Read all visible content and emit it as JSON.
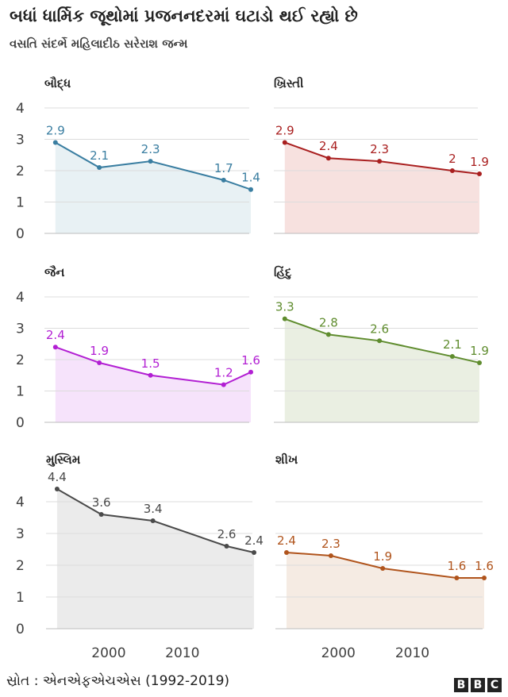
{
  "title": "બધાં ધાર્મિક જૂથોમાં પ્રજનનદરમાં ઘટાડો થઈ રહ્યો છે",
  "subtitle": "વસતિ સંદર્ભે મહિલાદીઠ સરેરાશ જન્મ",
  "source": "સ્રોત : એનએફએચએસ (1992-2019)",
  "logo_letters": [
    "B",
    "B",
    "C"
  ],
  "chart_data": [
    {
      "type": "area",
      "title": "બૌદ્ધ",
      "color": "#3a7ea1",
      "fill": "#e8f1f4",
      "x": [
        1993,
        1999,
        2006,
        2016,
        2020
      ],
      "values": [
        2.9,
        2.1,
        2.3,
        1.7,
        1.4
      ],
      "labels": [
        "2.9",
        "2.1",
        "2.3",
        "1.7",
        "1.4"
      ],
      "ylim": [
        0,
        4
      ],
      "yticks": [
        "0",
        "1",
        "2",
        "3",
        "4"
      ],
      "xticks": []
    },
    {
      "type": "area",
      "title": "ખ્રિસ્તી",
      "color": "#a91f1f",
      "fill": "#f7e1df",
      "x": [
        1993,
        1999,
        2006,
        2016,
        2020
      ],
      "values": [
        2.9,
        2.4,
        2.3,
        2.0,
        1.9
      ],
      "labels": [
        "2.9",
        "2.4",
        "2.3",
        "2",
        "1.9"
      ],
      "ylim": [
        0,
        4
      ],
      "yticks": [],
      "xticks": []
    },
    {
      "type": "area",
      "title": "જૈન",
      "color": "#b21fd3",
      "fill": "#f6e3fb",
      "x": [
        1993,
        1999,
        2006,
        2016,
        2020
      ],
      "values": [
        2.4,
        1.9,
        1.5,
        1.2,
        1.6
      ],
      "labels": [
        "2.4",
        "1.9",
        "1.5",
        "1.2",
        "1.6"
      ],
      "ylim": [
        0,
        4
      ],
      "yticks": [
        "0",
        "1",
        "2",
        "3",
        "4"
      ],
      "xticks": []
    },
    {
      "type": "area",
      "title": "હિંદુ",
      "color": "#5f8c2e",
      "fill": "#eaefe2",
      "x": [
        1993,
        1999,
        2006,
        2016,
        2020
      ],
      "values": [
        3.3,
        2.8,
        2.6,
        2.1,
        1.9
      ],
      "labels": [
        "3.3",
        "2.8",
        "2.6",
        "2.1",
        "1.9"
      ],
      "ylim": [
        0,
        4
      ],
      "yticks": [],
      "xticks": []
    },
    {
      "type": "area",
      "title": "મુસ્લિમ",
      "color": "#4a4a4a",
      "fill": "#ebebeb",
      "x": [
        1993,
        1999,
        2006,
        2016,
        2020
      ],
      "values": [
        4.4,
        3.6,
        3.4,
        2.6,
        2.4
      ],
      "labels": [
        "4.4",
        "3.6",
        "3.4",
        "2.6",
        "2.4"
      ],
      "ylim": [
        0,
        4
      ],
      "yticks": [
        "0",
        "1",
        "2",
        "3",
        "4"
      ],
      "xticks": [
        "2000",
        "2010"
      ]
    },
    {
      "type": "area",
      "title": "શીખ",
      "color": "#b0541c",
      "fill": "#f5ebe3",
      "x": [
        1993,
        1999,
        2006,
        2016,
        2020
      ],
      "values": [
        2.4,
        2.3,
        1.9,
        1.6,
        1.6
      ],
      "labels": [
        "2.4",
        "2.3",
        "1.9",
        "1.6",
        "1.6"
      ],
      "ylim": [
        0,
        4
      ],
      "yticks": [],
      "xticks": [
        "2000",
        "2010"
      ]
    }
  ]
}
